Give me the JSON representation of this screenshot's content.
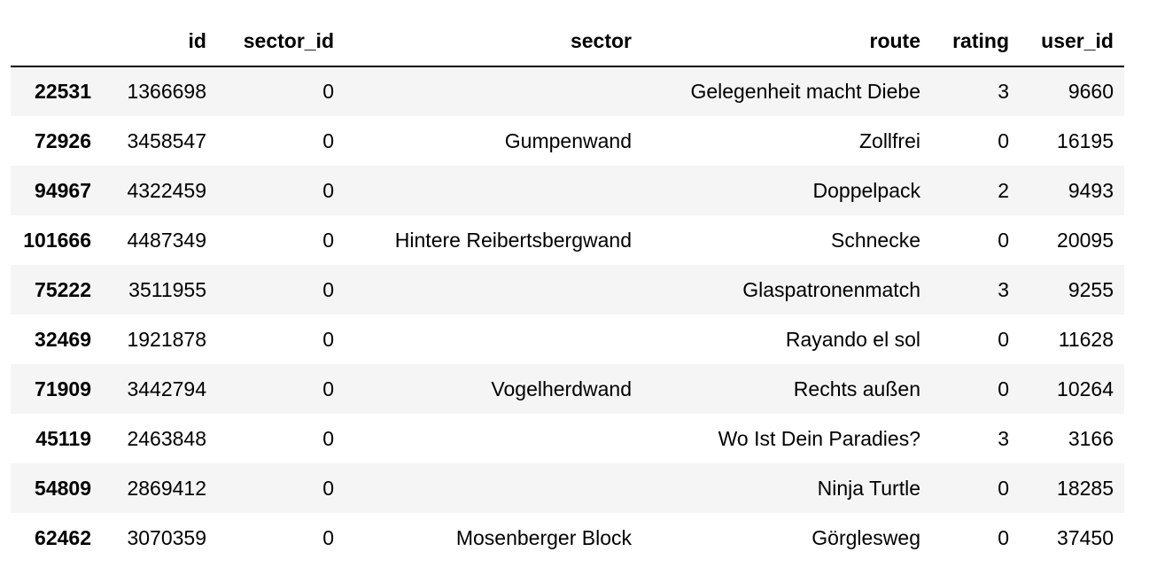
{
  "table": {
    "index_header": "",
    "columns": [
      "id",
      "sector_id",
      "sector",
      "route",
      "rating",
      "user_id"
    ],
    "rows": [
      {
        "index": "22531",
        "cells": [
          "1366698",
          "0",
          "",
          "Gelegenheit macht Diebe",
          "3",
          "9660"
        ]
      },
      {
        "index": "72926",
        "cells": [
          "3458547",
          "0",
          "Gumpenwand",
          "Zollfrei",
          "0",
          "16195"
        ]
      },
      {
        "index": "94967",
        "cells": [
          "4322459",
          "0",
          "",
          "Doppelpack",
          "2",
          "9493"
        ]
      },
      {
        "index": "101666",
        "cells": [
          "4487349",
          "0",
          "Hintere Reibertsbergwand",
          "Schnecke",
          "0",
          "20095"
        ]
      },
      {
        "index": "75222",
        "cells": [
          "3511955",
          "0",
          "",
          "Glaspatronenmatch",
          "3",
          "9255"
        ]
      },
      {
        "index": "32469",
        "cells": [
          "1921878",
          "0",
          "",
          "Rayando el sol",
          "0",
          "11628"
        ]
      },
      {
        "index": "71909",
        "cells": [
          "3442794",
          "0",
          "Vogelherdwand",
          "Rechts außen",
          "0",
          "10264"
        ]
      },
      {
        "index": "45119",
        "cells": [
          "2463848",
          "0",
          "",
          "Wo Ist Dein Paradies?",
          "3",
          "3166"
        ]
      },
      {
        "index": "54809",
        "cells": [
          "2869412",
          "0",
          "",
          "Ninja Turtle",
          "0",
          "18285"
        ]
      },
      {
        "index": "62462",
        "cells": [
          "3070359",
          "0",
          "Mosenberger Block",
          "Görglesweg",
          "0",
          "37450"
        ]
      }
    ]
  }
}
